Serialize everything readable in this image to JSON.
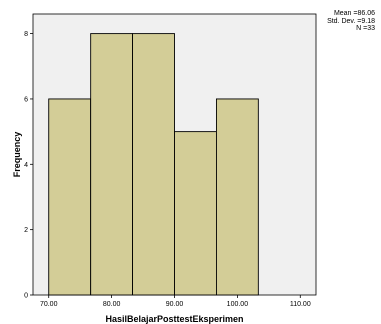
{
  "chart_data": {
    "type": "bar",
    "variant": "histogram",
    "xlabel": "HasilBelajarPosttestEksperimen",
    "ylabel": "Frequency",
    "bins": [
      {
        "start": 70,
        "end": 76.67,
        "count": 6
      },
      {
        "start": 76.67,
        "end": 83.33,
        "count": 8
      },
      {
        "start": 83.33,
        "end": 90,
        "count": 8
      },
      {
        "start": 90,
        "end": 96.67,
        "count": 5
      },
      {
        "start": 96.67,
        "end": 103.33,
        "count": 6
      }
    ],
    "xticks": [
      "70.00",
      "80.00",
      "90.00",
      "100.00",
      "110.00"
    ],
    "xtick_values": [
      70,
      80,
      90,
      100,
      110
    ],
    "yticks": [
      "0",
      "2",
      "4",
      "6",
      "8"
    ],
    "ytick_values": [
      0,
      2,
      4,
      6,
      8
    ],
    "xlim": [
      67.5,
      112.5
    ],
    "ylim": [
      0,
      8.6
    ],
    "grid": false,
    "colors": {
      "bar_fill": "#d3cd97",
      "bar_stroke": "#000000",
      "plot_bg": "#f0f0f0"
    },
    "stats": {
      "mean": "Mean =86.06",
      "std": "Std. Dev. =9.18",
      "n": "N =33"
    }
  }
}
